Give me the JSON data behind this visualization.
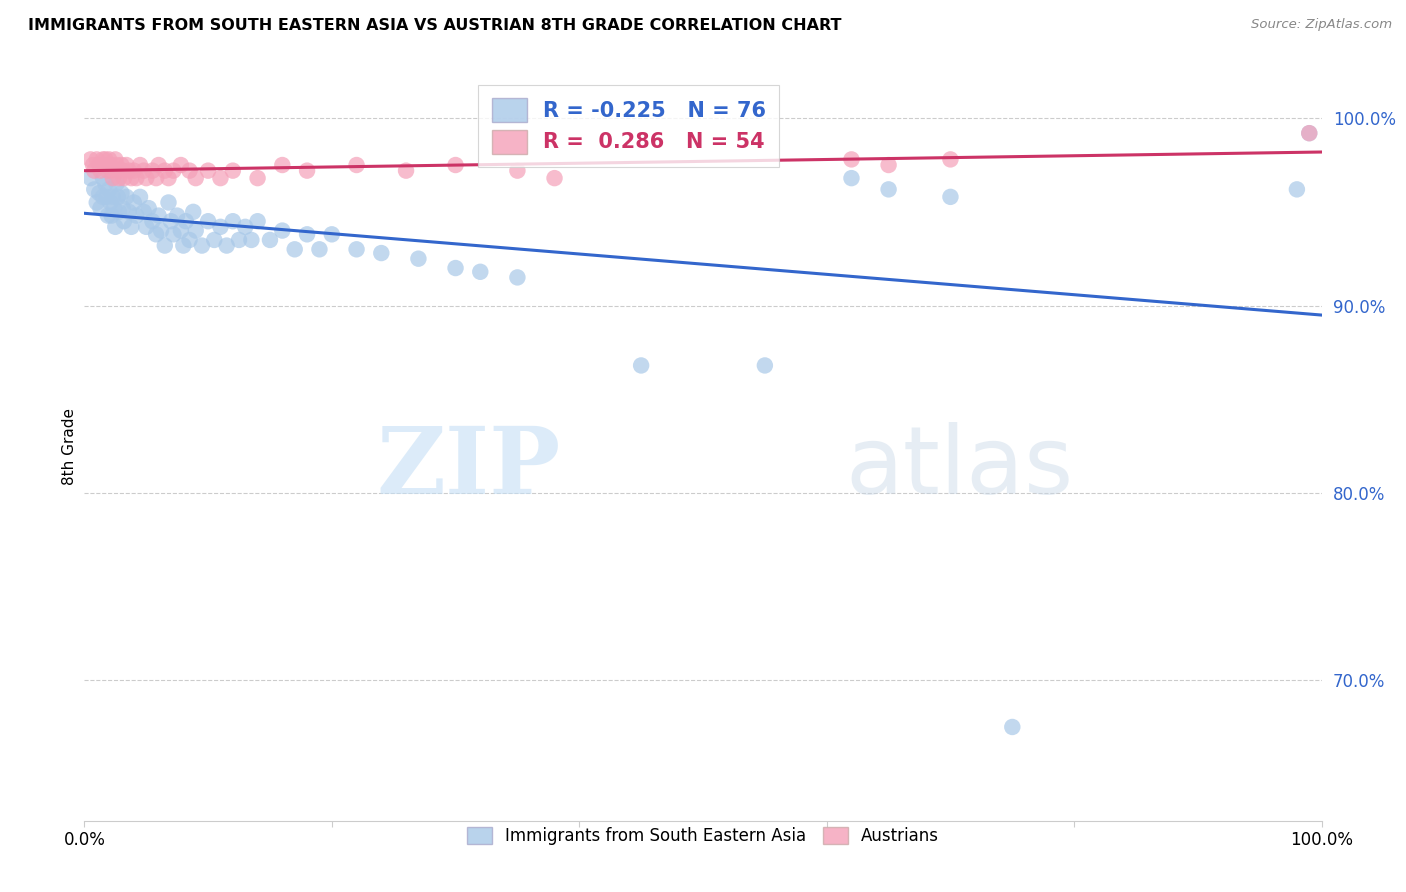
{
  "title": "IMMIGRANTS FROM SOUTH EASTERN ASIA VS AUSTRIAN 8TH GRADE CORRELATION CHART",
  "source": "Source: ZipAtlas.com",
  "ylabel": "8th Grade",
  "ytick_values": [
    1.0,
    0.9,
    0.8,
    0.7
  ],
  "xlim": [
    0.0,
    1.0
  ],
  "ylim": [
    0.625,
    1.025
  ],
  "legend_label1": "Immigrants from South Eastern Asia",
  "legend_label2": "Austrians",
  "R_blue": -0.225,
  "N_blue": 76,
  "R_pink": 0.286,
  "N_pink": 54,
  "blue_color": "#a8c8e8",
  "pink_color": "#f4a0b8",
  "blue_line_color": "#3366cc",
  "pink_line_color": "#cc3366",
  "grid_color": "#cccccc",
  "watermark_zip": "ZIP",
  "watermark_atlas": "atlas",
  "blue_scatter_x": [
    0.005,
    0.008,
    0.01,
    0.012,
    0.013,
    0.015,
    0.015,
    0.017,
    0.018,
    0.019,
    0.02,
    0.021,
    0.022,
    0.023,
    0.024,
    0.025,
    0.026,
    0.027,
    0.028,
    0.03,
    0.031,
    0.032,
    0.034,
    0.036,
    0.038,
    0.04,
    0.042,
    0.045,
    0.048,
    0.05,
    0.052,
    0.055,
    0.058,
    0.06,
    0.062,
    0.065,
    0.068,
    0.07,
    0.072,
    0.075,
    0.078,
    0.08,
    0.082,
    0.085,
    0.088,
    0.09,
    0.095,
    0.1,
    0.105,
    0.11,
    0.115,
    0.12,
    0.125,
    0.13,
    0.135,
    0.14,
    0.15,
    0.16,
    0.17,
    0.18,
    0.19,
    0.2,
    0.22,
    0.24,
    0.27,
    0.3,
    0.32,
    0.35,
    0.45,
    0.55,
    0.62,
    0.65,
    0.7,
    0.75,
    0.98,
    0.99
  ],
  "blue_scatter_y": [
    0.968,
    0.962,
    0.955,
    0.96,
    0.952,
    0.968,
    0.958,
    0.965,
    0.958,
    0.948,
    0.962,
    0.955,
    0.948,
    0.958,
    0.952,
    0.942,
    0.965,
    0.958,
    0.95,
    0.96,
    0.952,
    0.945,
    0.958,
    0.95,
    0.942,
    0.955,
    0.948,
    0.958,
    0.95,
    0.942,
    0.952,
    0.945,
    0.938,
    0.948,
    0.94,
    0.932,
    0.955,
    0.945,
    0.938,
    0.948,
    0.94,
    0.932,
    0.945,
    0.935,
    0.95,
    0.94,
    0.932,
    0.945,
    0.935,
    0.942,
    0.932,
    0.945,
    0.935,
    0.942,
    0.935,
    0.945,
    0.935,
    0.94,
    0.93,
    0.938,
    0.93,
    0.938,
    0.93,
    0.928,
    0.925,
    0.92,
    0.918,
    0.915,
    0.868,
    0.868,
    0.968,
    0.962,
    0.958,
    0.675,
    0.962,
    0.992
  ],
  "pink_scatter_x": [
    0.005,
    0.007,
    0.008,
    0.01,
    0.012,
    0.013,
    0.015,
    0.015,
    0.017,
    0.018,
    0.019,
    0.02,
    0.021,
    0.022,
    0.023,
    0.025,
    0.026,
    0.027,
    0.028,
    0.03,
    0.031,
    0.032,
    0.034,
    0.036,
    0.038,
    0.04,
    0.042,
    0.045,
    0.048,
    0.05,
    0.055,
    0.058,
    0.06,
    0.065,
    0.068,
    0.072,
    0.078,
    0.085,
    0.09,
    0.1,
    0.11,
    0.12,
    0.14,
    0.16,
    0.18,
    0.22,
    0.26,
    0.3,
    0.35,
    0.38,
    0.62,
    0.65,
    0.7,
    0.99
  ],
  "pink_scatter_y": [
    0.978,
    0.975,
    0.972,
    0.978,
    0.975,
    0.972,
    0.978,
    0.975,
    0.978,
    0.975,
    0.972,
    0.978,
    0.975,
    0.972,
    0.968,
    0.978,
    0.975,
    0.972,
    0.968,
    0.975,
    0.972,
    0.968,
    0.975,
    0.972,
    0.968,
    0.972,
    0.968,
    0.975,
    0.972,
    0.968,
    0.972,
    0.968,
    0.975,
    0.972,
    0.968,
    0.972,
    0.975,
    0.972,
    0.968,
    0.972,
    0.968,
    0.972,
    0.968,
    0.975,
    0.972,
    0.975,
    0.972,
    0.975,
    0.972,
    0.968,
    0.978,
    0.975,
    0.978,
    0.992
  ]
}
